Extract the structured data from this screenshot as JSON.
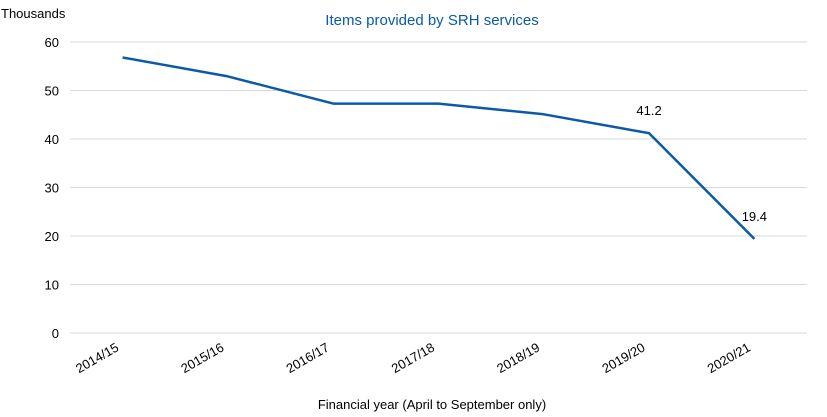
{
  "chart_data": {
    "type": "line",
    "title": "Items provided by SRH services",
    "unit_label": "Thousands",
    "xlabel": "Financial year (April to September only)",
    "ylabel": "",
    "categories": [
      "2014/15",
      "2015/16",
      "2016/17",
      "2017/18",
      "2018/19",
      "2019/20",
      "2020/21"
    ],
    "series": [
      {
        "values": [
          56.8,
          52.9,
          47.3,
          47.3,
          45.1,
          41.2,
          19.4
        ]
      }
    ],
    "data_labels": [
      {
        "category": "2019/20",
        "text": "41.2"
      },
      {
        "category": "2020/21",
        "text": "19.4"
      }
    ],
    "ylim": [
      0,
      60
    ],
    "yticks": [
      0,
      10,
      20,
      30,
      40,
      50,
      60
    ],
    "grid": true,
    "colors": {
      "title": "#0b5aa8",
      "line": "#0b5aa8",
      "grid": "#d9d9d9",
      "text": "#000000"
    }
  }
}
